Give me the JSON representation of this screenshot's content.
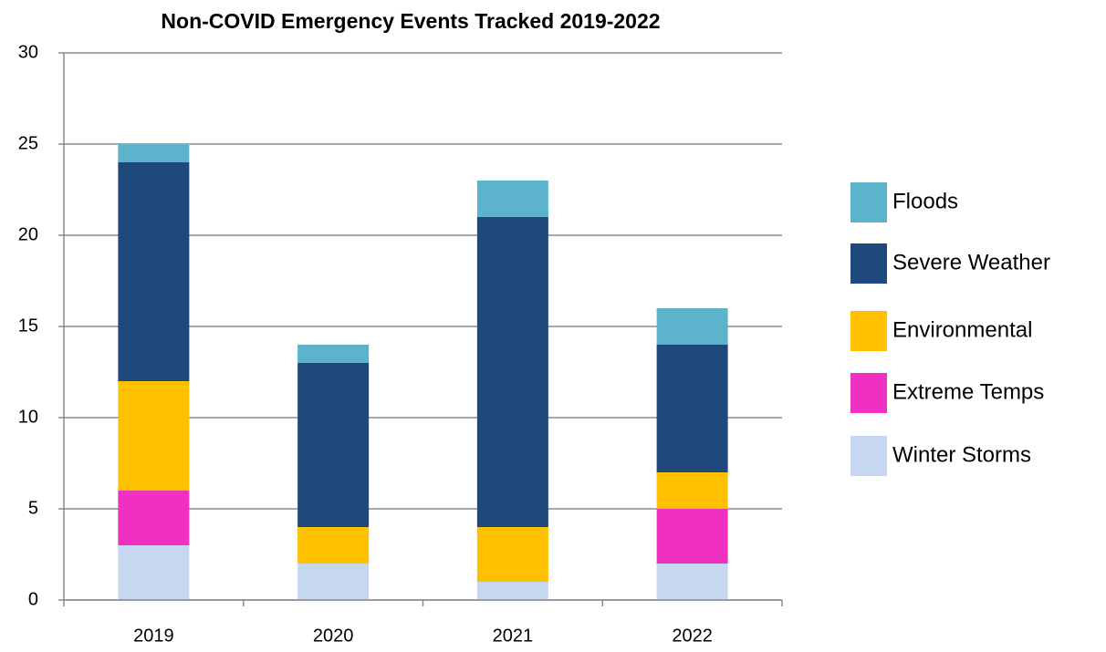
{
  "chart_data": {
    "type": "bar",
    "stacked": true,
    "title": "Non-COVID Emergency Events Tracked 2019-2022",
    "categories": [
      "2019",
      "2020",
      "2021",
      "2022"
    ],
    "series": [
      {
        "name": "Winter Storms",
        "color": "#c6d8ef",
        "values": [
          3,
          2,
          1,
          2
        ]
      },
      {
        "name": "Extreme Temps",
        "color": "#f030c0",
        "values": [
          3,
          0,
          0,
          3
        ]
      },
      {
        "name": "Environmental",
        "color": "#ffc000",
        "values": [
          6,
          2,
          3,
          2
        ]
      },
      {
        "name": "Severe Weather",
        "color": "#1f497d",
        "values": [
          12,
          9,
          17,
          7
        ]
      },
      {
        "name": "Floods",
        "color": "#5bb4cc",
        "values": [
          1,
          1,
          2,
          2
        ]
      }
    ],
    "ylim": [
      0,
      30
    ],
    "yticks": [
      0,
      5,
      10,
      15,
      20,
      25,
      30
    ],
    "grid": true,
    "legend": "right"
  }
}
